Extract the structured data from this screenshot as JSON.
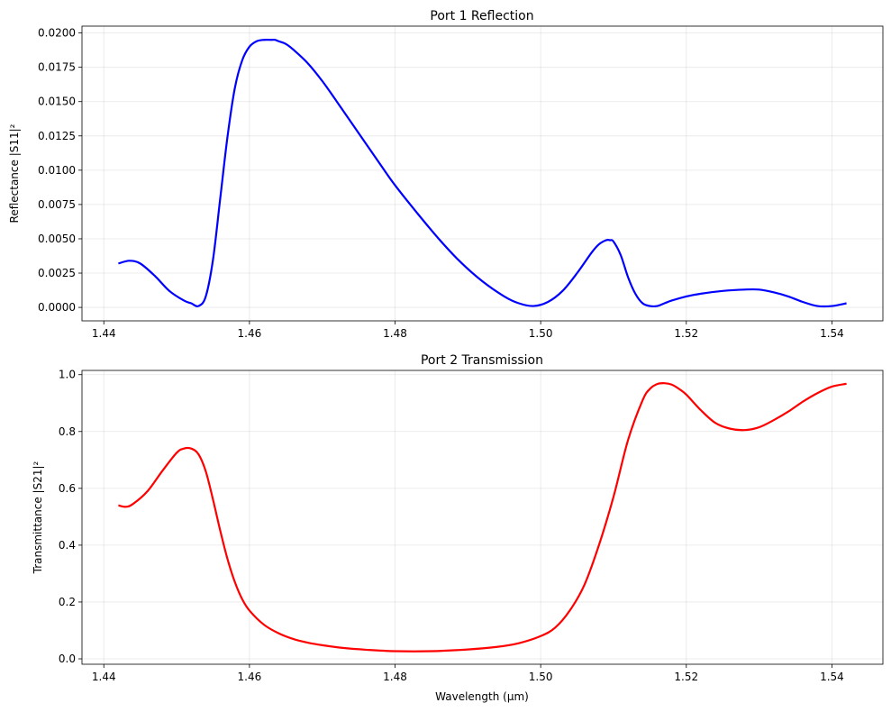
{
  "chart_data": [
    {
      "type": "line",
      "title": "Port 1 Reflection",
      "xlabel": "",
      "ylabel": "Reflectance |S11|²",
      "xlim": [
        1.437,
        1.547
      ],
      "ylim": [
        -0.00098,
        0.0205
      ],
      "xticks": [
        1.44,
        1.46,
        1.48,
        1.5,
        1.52,
        1.54
      ],
      "xtick_labels": [
        "1.44",
        "1.46",
        "1.48",
        "1.50",
        "1.52",
        "1.54"
      ],
      "yticks": [
        0,
        0.0025,
        0.005,
        0.0075,
        0.01,
        0.0125,
        0.015,
        0.0175,
        0.02
      ],
      "ytick_labels": [
        "0.0000",
        "0.0025",
        "0.0050",
        "0.0075",
        "0.0100",
        "0.0125",
        "0.0150",
        "0.0175",
        "0.0200"
      ],
      "grid": true,
      "color": "#0000ff",
      "series": [
        {
          "x": [
            1.442,
            1.4435,
            1.445,
            1.447,
            1.449,
            1.451,
            1.452,
            1.453,
            1.454,
            1.455,
            1.456,
            1.457,
            1.458,
            1.459,
            1.46,
            1.461,
            1.462,
            1.463,
            1.4635,
            1.464,
            1.465,
            1.466,
            1.468,
            1.47,
            1.472,
            1.475,
            1.478,
            1.48,
            1.483,
            1.486,
            1.489,
            1.492,
            1.495,
            1.497,
            1.499,
            1.501,
            1.503,
            1.505,
            1.507,
            1.508,
            1.509,
            1.5095,
            1.51,
            1.511,
            1.512,
            1.513,
            1.514,
            1.515,
            1.516,
            1.517,
            1.518,
            1.52,
            1.522,
            1.525,
            1.528,
            1.53,
            1.532,
            1.534,
            1.536,
            1.538,
            1.54,
            1.542
          ],
          "y": [
            0.0032,
            0.0034,
            0.0032,
            0.0023,
            0.0012,
            0.0005,
            0.0003,
            0.0001,
            0.0008,
            0.0035,
            0.008,
            0.0125,
            0.016,
            0.018,
            0.019,
            0.0194,
            0.0195,
            0.0195,
            0.0195,
            0.0194,
            0.0192,
            0.0188,
            0.0178,
            0.0165,
            0.015,
            0.0127,
            0.0104,
            0.0089,
            0.0069,
            0.005,
            0.0033,
            0.0019,
            0.0008,
            0.0003,
            0.0001,
            0.0004,
            0.0012,
            0.0025,
            0.004,
            0.0046,
            0.0049,
            0.0049,
            0.0048,
            0.0038,
            0.0022,
            0.001,
            0.0003,
            0.0001,
            0.0001,
            0.0003,
            0.0005,
            0.0008,
            0.001,
            0.0012,
            0.0013,
            0.0013,
            0.0011,
            0.0008,
            0.0004,
            0.0001,
            0.0001,
            0.0003
          ]
        }
      ]
    },
    {
      "type": "line",
      "title": "Port 2 Transmission",
      "xlabel": "Wavelength (μm)",
      "ylabel": "Transmittance |S21|²",
      "xlim": [
        1.437,
        1.547
      ],
      "ylim": [
        -0.019,
        1.015
      ],
      "xticks": [
        1.44,
        1.46,
        1.48,
        1.5,
        1.52,
        1.54
      ],
      "xtick_labels": [
        "1.44",
        "1.46",
        "1.48",
        "1.50",
        "1.52",
        "1.54"
      ],
      "yticks": [
        0,
        0.2,
        0.4,
        0.6,
        0.8,
        1.0
      ],
      "ytick_labels": [
        "0.0",
        "0.2",
        "0.4",
        "0.6",
        "0.8",
        "1.0"
      ],
      "grid": true,
      "color": "#ff0000",
      "series": [
        {
          "x": [
            1.442,
            1.443,
            1.444,
            1.446,
            1.448,
            1.45,
            1.451,
            1.452,
            1.453,
            1.454,
            1.455,
            1.456,
            1.457,
            1.458,
            1.459,
            1.46,
            1.462,
            1.464,
            1.466,
            1.468,
            1.47,
            1.473,
            1.476,
            1.48,
            1.485,
            1.49,
            1.494,
            1.497,
            1.5,
            1.502,
            1.504,
            1.506,
            1.508,
            1.51,
            1.512,
            1.514,
            1.515,
            1.516,
            1.517,
            1.518,
            1.519,
            1.52,
            1.522,
            1.524,
            1.526,
            1.528,
            1.53,
            1.532,
            1.534,
            1.536,
            1.538,
            1.54,
            1.542
          ],
          "y": [
            0.54,
            0.535,
            0.545,
            0.59,
            0.66,
            0.725,
            0.74,
            0.74,
            0.72,
            0.66,
            0.56,
            0.45,
            0.35,
            0.27,
            0.21,
            0.17,
            0.12,
            0.09,
            0.07,
            0.057,
            0.048,
            0.038,
            0.032,
            0.027,
            0.027,
            0.033,
            0.042,
            0.055,
            0.08,
            0.11,
            0.17,
            0.26,
            0.4,
            0.57,
            0.77,
            0.91,
            0.95,
            0.967,
            0.97,
            0.965,
            0.95,
            0.93,
            0.875,
            0.83,
            0.81,
            0.805,
            0.815,
            0.84,
            0.87,
            0.905,
            0.935,
            0.958,
            0.968
          ]
        }
      ]
    }
  ]
}
